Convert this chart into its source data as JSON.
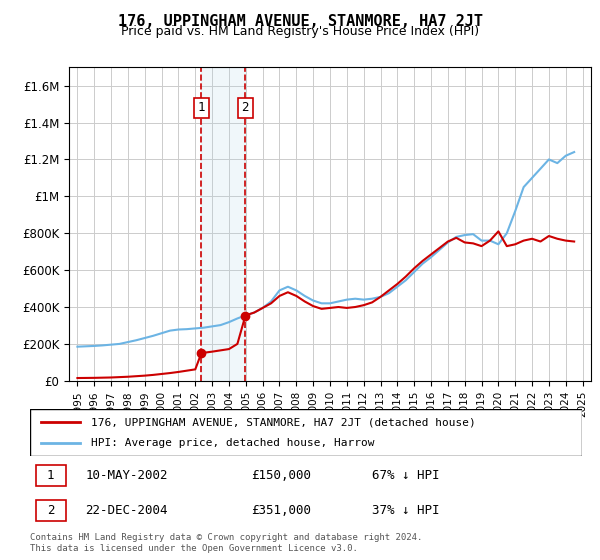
{
  "title": "176, UPPINGHAM AVENUE, STANMORE, HA7 2JT",
  "subtitle": "Price paid vs. HM Land Registry's House Price Index (HPI)",
  "legend_line1": "176, UPPINGHAM AVENUE, STANMORE, HA7 2JT (detached house)",
  "legend_line2": "HPI: Average price, detached house, Harrow",
  "footnote": "Contains HM Land Registry data © Crown copyright and database right 2024.\nThis data is licensed under the Open Government Licence v3.0.",
  "table": [
    {
      "num": "1",
      "date": "10-MAY-2002",
      "price": "£150,000",
      "change": "67% ↓ HPI"
    },
    {
      "num": "2",
      "date": "22-DEC-2004",
      "price": "£351,000",
      "change": "37% ↓ HPI"
    }
  ],
  "sale1_x": 2002.36,
  "sale1_y": 150000,
  "sale2_x": 2004.97,
  "sale2_y": 351000,
  "hpi_color": "#6cb4e4",
  "price_color": "#cc0000",
  "vline1_color": "#cc0000",
  "vline2_color": "#cc0000",
  "shade_color": "#add8e6",
  "ylim": [
    0,
    1700000
  ],
  "yticks": [
    0,
    200000,
    400000,
    600000,
    800000,
    1000000,
    1200000,
    1400000,
    1600000
  ],
  "ytick_labels": [
    "£0",
    "£200K",
    "£400K",
    "£600K",
    "£800K",
    "£1M",
    "£1.2M",
    "£1.4M",
    "£1.6M"
  ],
  "xtick_years": [
    1995,
    1996,
    1997,
    1998,
    1999,
    2000,
    2001,
    2002,
    2003,
    2004,
    2005,
    2006,
    2007,
    2008,
    2009,
    2010,
    2011,
    2012,
    2013,
    2014,
    2015,
    2016,
    2017,
    2018,
    2019,
    2020,
    2021,
    2022,
    2023,
    2024,
    2025
  ],
  "hpi_years": [
    1995,
    1995.5,
    1996,
    1996.5,
    1997,
    1997.5,
    1998,
    1998.5,
    1999,
    1999.5,
    2000,
    2000.5,
    2001,
    2001.5,
    2002,
    2002.5,
    2003,
    2003.5,
    2004,
    2004.5,
    2005,
    2005.5,
    2006,
    2006.5,
    2007,
    2007.5,
    2008,
    2008.5,
    2009,
    2009.5,
    2010,
    2010.5,
    2011,
    2011.5,
    2012,
    2012.5,
    2013,
    2013.5,
    2014,
    2014.5,
    2015,
    2015.5,
    2016,
    2016.5,
    2017,
    2017.5,
    2018,
    2018.5,
    2019,
    2019.5,
    2020,
    2020.5,
    2021,
    2021.5,
    2022,
    2022.5,
    2023,
    2023.5,
    2024,
    2024.5
  ],
  "hpi_values": [
    185000,
    187000,
    189000,
    192000,
    196000,
    200000,
    210000,
    220000,
    232000,
    244000,
    258000,
    272000,
    278000,
    280000,
    284000,
    288000,
    295000,
    302000,
    318000,
    338000,
    355000,
    370000,
    395000,
    430000,
    490000,
    510000,
    490000,
    460000,
    435000,
    420000,
    420000,
    430000,
    440000,
    445000,
    440000,
    445000,
    455000,
    475000,
    510000,
    545000,
    590000,
    635000,
    670000,
    710000,
    750000,
    780000,
    790000,
    795000,
    760000,
    760000,
    740000,
    800000,
    920000,
    1050000,
    1100000,
    1150000,
    1200000,
    1180000,
    1220000,
    1240000
  ],
  "price_years": [
    1995,
    1995.5,
    1996,
    1996.5,
    1997,
    1997.5,
    1998,
    1998.5,
    1999,
    1999.5,
    2000,
    2000.5,
    2001,
    2001.5,
    2002,
    2002.36,
    2002.5,
    2003,
    2003.5,
    2004,
    2004.5,
    2004.97,
    2005,
    2005.5,
    2006,
    2006.5,
    2007,
    2007.5,
    2008,
    2008.5,
    2009,
    2009.5,
    2010,
    2010.5,
    2011,
    2011.5,
    2012,
    2012.5,
    2013,
    2013.5,
    2014,
    2014.5,
    2015,
    2015.5,
    2016,
    2016.5,
    2017,
    2017.5,
    2018,
    2018.5,
    2019,
    2019.5,
    2020,
    2020.5,
    2021,
    2021.5,
    2022,
    2022.5,
    2023,
    2023.5,
    2024,
    2024.5
  ],
  "price_values": [
    15000,
    15500,
    16000,
    17000,
    18000,
    20000,
    22000,
    25000,
    28000,
    32000,
    37000,
    42000,
    48000,
    55000,
    62000,
    150000,
    152000,
    158000,
    165000,
    172000,
    200000,
    351000,
    355000,
    370000,
    395000,
    420000,
    460000,
    480000,
    460000,
    430000,
    405000,
    390000,
    395000,
    400000,
    395000,
    400000,
    410000,
    425000,
    455000,
    490000,
    525000,
    565000,
    610000,
    650000,
    685000,
    720000,
    755000,
    775000,
    750000,
    745000,
    730000,
    760000,
    810000,
    730000,
    740000,
    760000,
    770000,
    755000,
    785000,
    770000,
    760000,
    755000
  ]
}
